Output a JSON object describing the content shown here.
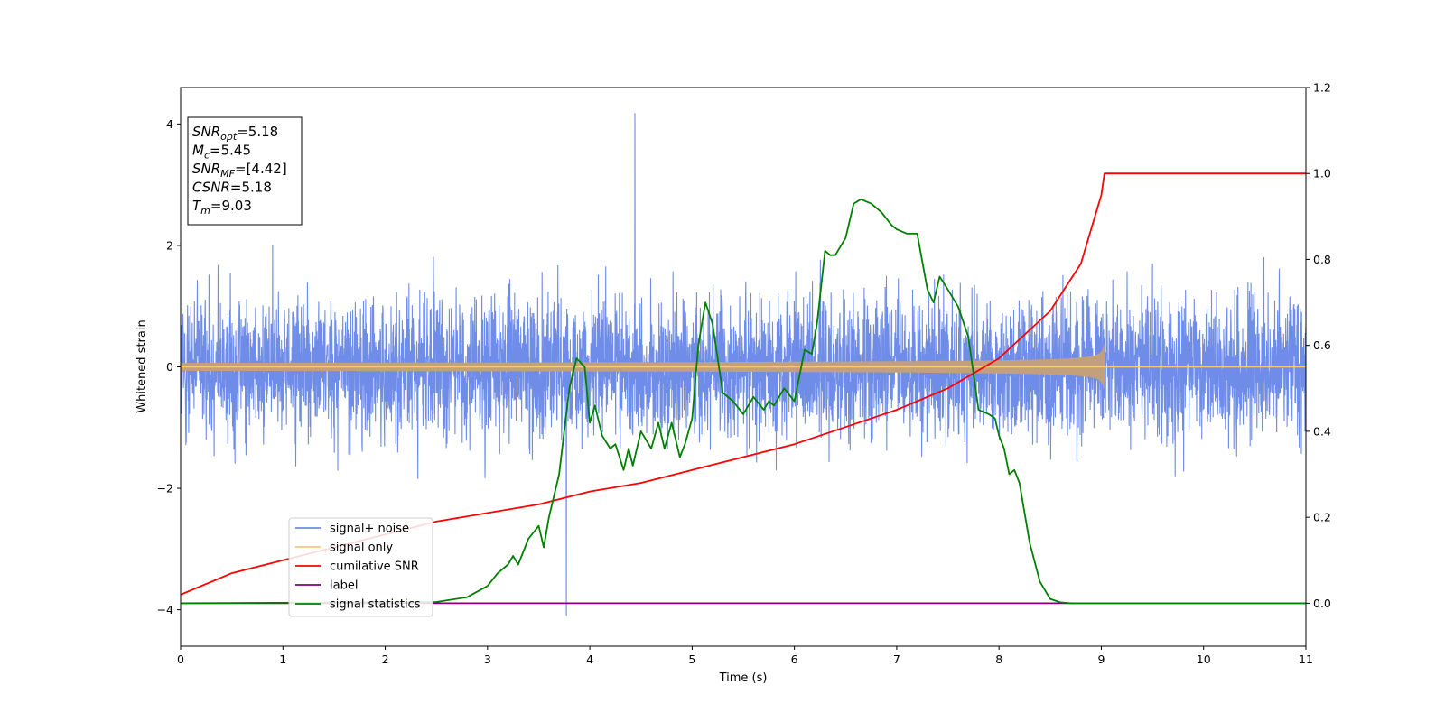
{
  "chart_data": {
    "type": "line",
    "title": "",
    "xlabel": "Time (s)",
    "ylabel": "Whitened strain",
    "xlim": [
      0,
      11
    ],
    "ylim_left": [
      -4.6,
      4.6
    ],
    "ylim_right": [
      -0.1,
      1.2
    ],
    "x_ticks": [
      "0",
      "1",
      "2",
      "3",
      "4",
      "5",
      "6",
      "7",
      "8",
      "9",
      "10",
      "11"
    ],
    "y_ticks_left": [
      "4",
      "2",
      "0",
      "−2",
      "−4"
    ],
    "y_ticks_left_values": [
      4,
      2,
      0,
      -2,
      -4
    ],
    "y_ticks_right": [
      "1.2",
      "1.0",
      "0.8",
      "0.6",
      "0.4",
      "0.2",
      "0.0"
    ],
    "y_ticks_right_values": [
      1.2,
      1.0,
      0.8,
      0.6,
      0.4,
      0.2,
      0.0
    ],
    "grid": false,
    "legend_position": "lower-left",
    "info_box": {
      "lines": [
        {
          "main": "SNR",
          "sub": "opt",
          "value": "=5.18"
        },
        {
          "main": "M",
          "sub": "c",
          "value": "=5.45"
        },
        {
          "main": "SNR",
          "sub": "MF",
          "value": "=[4.42]"
        },
        {
          "main": "CSNR",
          "sub": "",
          "value": "=5.18"
        },
        {
          "main": "T",
          "sub": "m",
          "value": "=9.03"
        }
      ]
    },
    "series": [
      {
        "name": "signal+ noise",
        "color": "#6f8de8",
        "axis": "left",
        "kind": "noise",
        "noise_std": 0.9,
        "peak": 4.18,
        "trough": -4.1
      },
      {
        "name": "signal only",
        "color": "#f5c87a",
        "axis": "left",
        "kind": "chirp",
        "merger_time": 9.03,
        "peak_amplitude": 0.45
      },
      {
        "name": "cumilative SNR",
        "color": "#ff0000",
        "axis": "right",
        "x": [
          0,
          0.5,
          1,
          1.5,
          2,
          2.5,
          3,
          3.5,
          4,
          4.5,
          5,
          5.5,
          6,
          6.5,
          7,
          7.5,
          8,
          8.5,
          8.8,
          9.0,
          9.03,
          11
        ],
        "values": [
          0.02,
          0.07,
          0.1,
          0.13,
          0.16,
          0.19,
          0.21,
          0.23,
          0.26,
          0.28,
          0.31,
          0.34,
          0.37,
          0.41,
          0.45,
          0.5,
          0.57,
          0.68,
          0.79,
          0.95,
          1.0,
          1.0
        ]
      },
      {
        "name": "label",
        "color": "#800080",
        "axis": "right",
        "x": [
          0,
          11
        ],
        "values": [
          0.0,
          0.0
        ]
      },
      {
        "name": "signal statistics",
        "color": "#008000",
        "axis": "right",
        "x": [
          0,
          2.5,
          2.8,
          3.0,
          3.1,
          3.2,
          3.25,
          3.3,
          3.4,
          3.5,
          3.55,
          3.6,
          3.7,
          3.8,
          3.87,
          3.95,
          4.0,
          4.05,
          4.12,
          4.2,
          4.25,
          4.33,
          4.38,
          4.42,
          4.5,
          4.6,
          4.67,
          4.73,
          4.8,
          4.88,
          4.93,
          5.0,
          5.06,
          5.13,
          5.2,
          5.3,
          5.4,
          5.5,
          5.6,
          5.7,
          5.75,
          5.8,
          5.9,
          6.0,
          6.05,
          6.1,
          6.17,
          6.22,
          6.3,
          6.35,
          6.4,
          6.5,
          6.58,
          6.65,
          6.75,
          6.85,
          6.95,
          7.0,
          7.1,
          7.2,
          7.3,
          7.36,
          7.42,
          7.5,
          7.6,
          7.7,
          7.8,
          7.9,
          7.96,
          8.0,
          8.05,
          8.1,
          8.15,
          8.2,
          8.3,
          8.4,
          8.5,
          8.6,
          8.7,
          9.0,
          11
        ],
        "values": [
          0.0,
          0.003,
          0.014,
          0.04,
          0.07,
          0.09,
          0.11,
          0.09,
          0.15,
          0.18,
          0.13,
          0.2,
          0.3,
          0.5,
          0.57,
          0.55,
          0.42,
          0.46,
          0.39,
          0.36,
          0.37,
          0.31,
          0.36,
          0.32,
          0.4,
          0.36,
          0.42,
          0.36,
          0.42,
          0.34,
          0.37,
          0.43,
          0.6,
          0.7,
          0.65,
          0.49,
          0.47,
          0.44,
          0.48,
          0.45,
          0.47,
          0.46,
          0.5,
          0.47,
          0.53,
          0.59,
          0.58,
          0.65,
          0.82,
          0.81,
          0.81,
          0.85,
          0.93,
          0.94,
          0.93,
          0.91,
          0.88,
          0.87,
          0.86,
          0.86,
          0.73,
          0.7,
          0.76,
          0.73,
          0.69,
          0.62,
          0.45,
          0.44,
          0.43,
          0.39,
          0.36,
          0.3,
          0.31,
          0.28,
          0.14,
          0.05,
          0.01,
          0.002,
          0.0,
          0.0,
          0.0
        ]
      }
    ]
  }
}
